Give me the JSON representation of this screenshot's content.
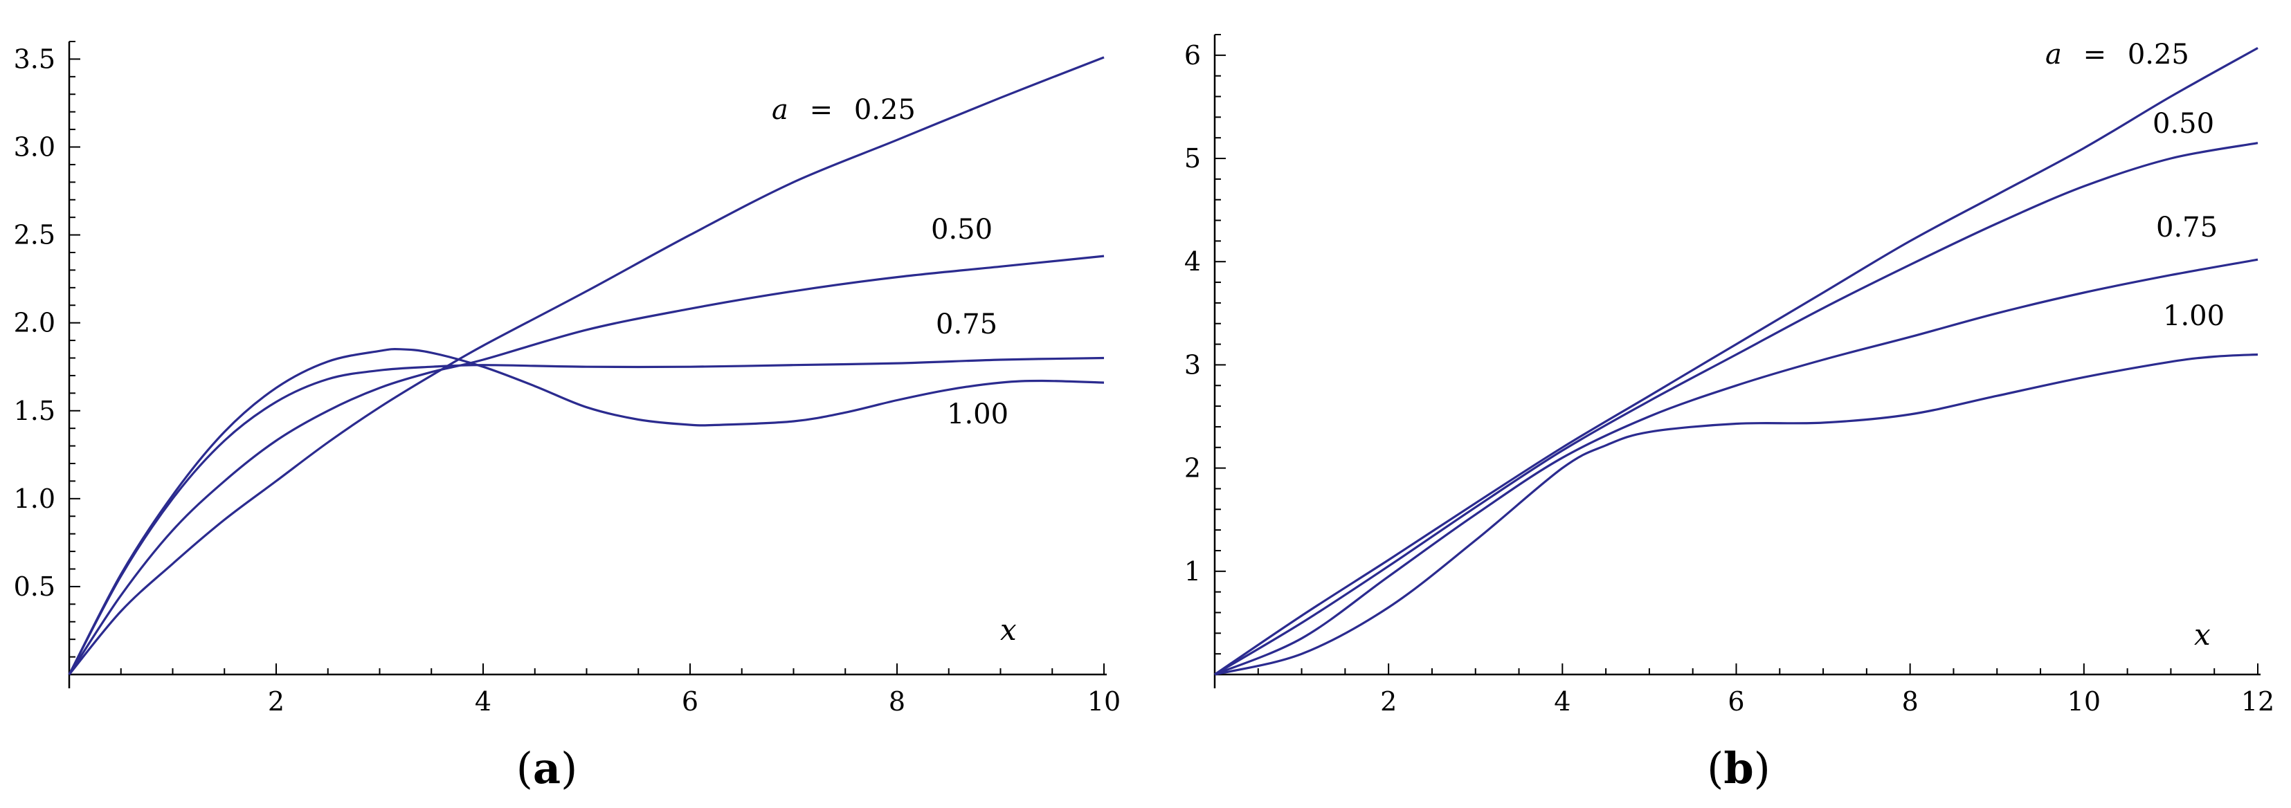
{
  "colors": {
    "line": "#2b2b8f",
    "axis": "#000000",
    "background": "#ffffff"
  },
  "chart_data": [
    {
      "type": "line",
      "panel_label": {
        "open": "(",
        "letter": "a",
        "close": ")"
      },
      "xlabel": "x",
      "ylabel": "",
      "xlim": [
        0,
        10
      ],
      "ylim": [
        0,
        3.6
      ],
      "xticks": [
        2,
        4,
        6,
        8,
        10
      ],
      "xtick_labels": [
        "2",
        "4",
        "6",
        "8",
        "10"
      ],
      "yticks": [
        0.5,
        1.0,
        1.5,
        2.0,
        2.5,
        3.0,
        3.5
      ],
      "ytick_labels": [
        "0.5",
        "1.0",
        "1.5",
        "2.0",
        "2.5",
        "3.0",
        "3.5"
      ],
      "grid": false,
      "series": [
        {
          "name": "a = 0.25",
          "label_parts": [
            "a",
            "=",
            "0.25"
          ],
          "x": [
            0,
            0.5,
            1,
            1.5,
            2,
            2.5,
            3,
            3.5,
            4,
            5,
            6,
            7,
            8,
            9,
            10
          ],
          "y": [
            0,
            0.36,
            0.63,
            0.88,
            1.1,
            1.32,
            1.52,
            1.7,
            1.87,
            2.18,
            2.5,
            2.8,
            3.04,
            3.28,
            3.51
          ]
        },
        {
          "name": "0.50",
          "x": [
            0,
            0.5,
            1,
            1.5,
            2,
            2.5,
            3,
            3.5,
            4,
            5,
            6,
            7,
            8,
            9,
            10
          ],
          "y": [
            0,
            0.45,
            0.82,
            1.1,
            1.33,
            1.5,
            1.63,
            1.72,
            1.79,
            1.96,
            2.08,
            2.18,
            2.26,
            2.32,
            2.38
          ]
        },
        {
          "name": "0.75",
          "x": [
            0,
            0.5,
            1,
            1.5,
            2,
            2.5,
            3,
            3.5,
            4,
            5,
            6,
            7,
            8,
            9,
            10
          ],
          "y": [
            0,
            0.56,
            1.0,
            1.33,
            1.55,
            1.68,
            1.73,
            1.75,
            1.76,
            1.75,
            1.75,
            1.76,
            1.77,
            1.79,
            1.8
          ]
        },
        {
          "name": "1.00",
          "x": [
            0,
            0.5,
            1,
            1.5,
            2,
            2.5,
            3,
            3.2,
            3.5,
            4,
            4.5,
            5,
            5.5,
            6,
            6.3,
            7,
            7.5,
            8,
            8.5,
            9,
            9.4,
            10
          ],
          "y": [
            0,
            0.57,
            1.02,
            1.38,
            1.63,
            1.78,
            1.84,
            1.85,
            1.83,
            1.75,
            1.64,
            1.52,
            1.45,
            1.42,
            1.42,
            1.44,
            1.49,
            1.56,
            1.62,
            1.66,
            1.67,
            1.66
          ]
        }
      ],
      "annotations": [
        "a = 0.25",
        "0.50",
        "0.75",
        "1.00"
      ]
    },
    {
      "type": "line",
      "panel_label": {
        "open": "(",
        "letter": "b",
        "close": ")"
      },
      "xlabel": "x",
      "ylabel": "",
      "xlim": [
        0,
        12
      ],
      "ylim": [
        0,
        6.2
      ],
      "xticks": [
        2,
        4,
        6,
        8,
        10,
        12
      ],
      "xtick_labels": [
        "2",
        "4",
        "6",
        "8",
        "10",
        "12"
      ],
      "yticks": [
        1,
        2,
        3,
        4,
        5,
        6
      ],
      "ytick_labels": [
        "1",
        "2",
        "3",
        "4",
        "5",
        "6"
      ],
      "grid": false,
      "series": [
        {
          "name": "a = 0.25",
          "label_parts": [
            "a",
            "=",
            "0.25"
          ],
          "x": [
            0,
            1,
            2,
            3,
            4,
            5,
            6,
            7,
            8,
            9,
            10,
            11,
            12
          ],
          "y": [
            0,
            0.57,
            1.11,
            1.66,
            2.2,
            2.7,
            3.2,
            3.7,
            4.2,
            4.65,
            5.1,
            5.6,
            6.07
          ]
        },
        {
          "name": "0.50",
          "x": [
            0,
            1,
            2,
            3,
            4,
            5,
            6,
            7,
            8,
            9,
            10,
            11,
            12
          ],
          "y": [
            0,
            0.5,
            1.05,
            1.62,
            2.17,
            2.65,
            3.1,
            3.55,
            3.97,
            4.37,
            4.73,
            5.0,
            5.15
          ]
        },
        {
          "name": "0.75",
          "x": [
            0,
            1,
            2,
            3,
            4,
            5,
            6,
            7,
            8,
            9,
            10,
            11,
            12
          ],
          "y": [
            0,
            0.35,
            0.95,
            1.55,
            2.1,
            2.5,
            2.8,
            3.05,
            3.27,
            3.5,
            3.7,
            3.87,
            4.02
          ]
        },
        {
          "name": "1.00",
          "x": [
            0,
            1,
            2,
            3,
            4,
            4.5,
            5,
            6,
            7,
            8,
            9,
            10,
            11,
            11.5,
            12
          ],
          "y": [
            0,
            0.2,
            0.65,
            1.3,
            2.0,
            2.22,
            2.35,
            2.43,
            2.44,
            2.52,
            2.7,
            2.88,
            3.03,
            3.08,
            3.1
          ]
        }
      ],
      "annotations": [
        "a = 0.25",
        "0.50",
        "0.75",
        "1.00"
      ]
    }
  ]
}
